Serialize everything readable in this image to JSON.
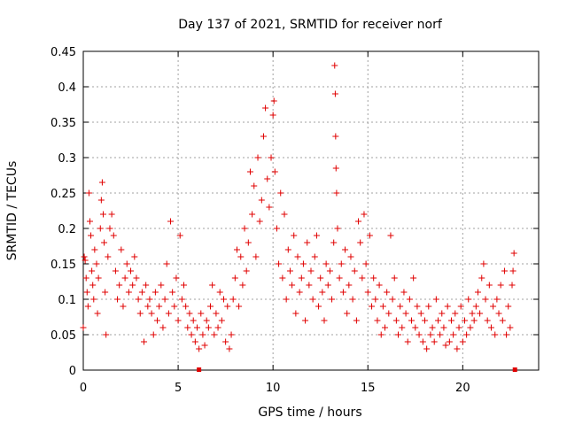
{
  "chart_data": {
    "type": "scatter",
    "title": "Day 137 of 2021, SRMTID for receiver norf",
    "xlabel": "GPS time / hours",
    "ylabel": "SRMTID / TECUs",
    "xlim": [
      0,
      24
    ],
    "ylim": [
      0,
      0.45
    ],
    "x_ticks": [
      0,
      5,
      10,
      15,
      20
    ],
    "x_tick_labels": [
      "0",
      "5",
      "10",
      "15",
      "20"
    ],
    "y_ticks": [
      0,
      0.05,
      0.1,
      0.15,
      0.2,
      0.25,
      0.3,
      0.35,
      0.4,
      0.45
    ],
    "y_tick_labels": [
      "0",
      "0.05",
      "0.1",
      "0.15",
      "0.2",
      "0.25",
      "0.3",
      "0.35",
      "0.4",
      "0.45"
    ],
    "grid": true,
    "marker": "plus",
    "color": "#e00000",
    "series": [
      {
        "name": "SRMTID",
        "points": [
          [
            0.0,
            0.06
          ],
          [
            0.05,
            0.16
          ],
          [
            0.1,
            0.155
          ],
          [
            0.15,
            0.13
          ],
          [
            0.2,
            0.11
          ],
          [
            0.25,
            0.09
          ],
          [
            0.3,
            0.25
          ],
          [
            0.35,
            0.21
          ],
          [
            0.4,
            0.19
          ],
          [
            0.45,
            0.14
          ],
          [
            0.5,
            0.12
          ],
          [
            0.55,
            0.1
          ],
          [
            0.6,
            0.17
          ],
          [
            0.7,
            0.15
          ],
          [
            0.75,
            0.08
          ],
          [
            0.8,
            0.13
          ],
          [
            0.9,
            0.2
          ],
          [
            0.95,
            0.24
          ],
          [
            1.0,
            0.265
          ],
          [
            1.05,
            0.22
          ],
          [
            1.1,
            0.18
          ],
          [
            1.15,
            0.11
          ],
          [
            1.2,
            0.05
          ],
          [
            1.3,
            0.16
          ],
          [
            1.4,
            0.2
          ],
          [
            1.5,
            0.22
          ],
          [
            1.6,
            0.19
          ],
          [
            1.7,
            0.14
          ],
          [
            1.8,
            0.1
          ],
          [
            1.9,
            0.12
          ],
          [
            2.0,
            0.17
          ],
          [
            2.1,
            0.09
          ],
          [
            2.2,
            0.13
          ],
          [
            2.3,
            0.15
          ],
          [
            2.4,
            0.11
          ],
          [
            2.5,
            0.14
          ],
          [
            2.6,
            0.12
          ],
          [
            2.7,
            0.16
          ],
          [
            2.8,
            0.13
          ],
          [
            2.9,
            0.1
          ],
          [
            3.0,
            0.08
          ],
          [
            3.1,
            0.11
          ],
          [
            3.2,
            0.04
          ],
          [
            3.3,
            0.12
          ],
          [
            3.4,
            0.09
          ],
          [
            3.5,
            0.1
          ],
          [
            3.6,
            0.08
          ],
          [
            3.7,
            0.05
          ],
          [
            3.8,
            0.11
          ],
          [
            3.9,
            0.07
          ],
          [
            4.0,
            0.09
          ],
          [
            4.1,
            0.12
          ],
          [
            4.2,
            0.06
          ],
          [
            4.3,
            0.1
          ],
          [
            4.4,
            0.15
          ],
          [
            4.5,
            0.08
          ],
          [
            4.6,
            0.21
          ],
          [
            4.7,
            0.11
          ],
          [
            4.8,
            0.09
          ],
          [
            4.9,
            0.13
          ],
          [
            5.0,
            0.07
          ],
          [
            5.1,
            0.19
          ],
          [
            5.2,
            0.1
          ],
          [
            5.3,
            0.12
          ],
          [
            5.4,
            0.09
          ],
          [
            5.5,
            0.06
          ],
          [
            5.6,
            0.08
          ],
          [
            5.7,
            0.05
          ],
          [
            5.8,
            0.07
          ],
          [
            5.9,
            0.04
          ],
          [
            6.0,
            0.06
          ],
          [
            6.1,
            0.03
          ],
          [
            6.2,
            0.08
          ],
          [
            6.3,
            0.05
          ],
          [
            6.4,
            0.035
          ],
          [
            6.5,
            0.07
          ],
          [
            6.6,
            0.06
          ],
          [
            6.7,
            0.09
          ],
          [
            6.8,
            0.12
          ],
          [
            6.9,
            0.05
          ],
          [
            7.0,
            0.08
          ],
          [
            7.1,
            0.06
          ],
          [
            7.2,
            0.11
          ],
          [
            7.3,
            0.07
          ],
          [
            7.4,
            0.1
          ],
          [
            7.5,
            0.04
          ],
          [
            7.6,
            0.09
          ],
          [
            7.7,
            0.03
          ],
          [
            7.8,
            0.05
          ],
          [
            7.9,
            0.1
          ],
          [
            8.0,
            0.13
          ],
          [
            8.1,
            0.17
          ],
          [
            8.2,
            0.09
          ],
          [
            8.3,
            0.16
          ],
          [
            8.4,
            0.12
          ],
          [
            8.5,
            0.2
          ],
          [
            8.6,
            0.14
          ],
          [
            8.7,
            0.18
          ],
          [
            8.8,
            0.28
          ],
          [
            8.9,
            0.22
          ],
          [
            9.0,
            0.26
          ],
          [
            9.1,
            0.16
          ],
          [
            9.2,
            0.3
          ],
          [
            9.3,
            0.21
          ],
          [
            9.4,
            0.24
          ],
          [
            9.5,
            0.33
          ],
          [
            9.6,
            0.37
          ],
          [
            9.7,
            0.27
          ],
          [
            9.8,
            0.23
          ],
          [
            9.9,
            0.3
          ],
          [
            10.0,
            0.36
          ],
          [
            10.05,
            0.38
          ],
          [
            10.1,
            0.28
          ],
          [
            10.2,
            0.2
          ],
          [
            10.3,
            0.15
          ],
          [
            10.4,
            0.25
          ],
          [
            10.5,
            0.13
          ],
          [
            10.6,
            0.22
          ],
          [
            10.7,
            0.1
          ],
          [
            10.8,
            0.17
          ],
          [
            10.9,
            0.14
          ],
          [
            11.0,
            0.12
          ],
          [
            11.1,
            0.19
          ],
          [
            11.2,
            0.08
          ],
          [
            11.3,
            0.16
          ],
          [
            11.4,
            0.11
          ],
          [
            11.5,
            0.13
          ],
          [
            11.6,
            0.15
          ],
          [
            11.7,
            0.07
          ],
          [
            11.8,
            0.18
          ],
          [
            11.9,
            0.12
          ],
          [
            12.0,
            0.14
          ],
          [
            12.1,
            0.1
          ],
          [
            12.2,
            0.16
          ],
          [
            12.3,
            0.19
          ],
          [
            12.4,
            0.09
          ],
          [
            12.5,
            0.13
          ],
          [
            12.6,
            0.11
          ],
          [
            12.7,
            0.07
          ],
          [
            12.8,
            0.15
          ],
          [
            12.9,
            0.12
          ],
          [
            13.0,
            0.14
          ],
          [
            13.1,
            0.1
          ],
          [
            13.2,
            0.18
          ],
          [
            13.25,
            0.43
          ],
          [
            13.28,
            0.39
          ],
          [
            13.3,
            0.33
          ],
          [
            13.32,
            0.285
          ],
          [
            13.35,
            0.25
          ],
          [
            13.4,
            0.2
          ],
          [
            13.5,
            0.13
          ],
          [
            13.6,
            0.15
          ],
          [
            13.7,
            0.11
          ],
          [
            13.8,
            0.17
          ],
          [
            13.9,
            0.08
          ],
          [
            14.0,
            0.12
          ],
          [
            14.1,
            0.16
          ],
          [
            14.2,
            0.1
          ],
          [
            14.3,
            0.14
          ],
          [
            14.4,
            0.07
          ],
          [
            14.5,
            0.21
          ],
          [
            14.6,
            0.18
          ],
          [
            14.7,
            0.13
          ],
          [
            14.8,
            0.22
          ],
          [
            14.9,
            0.15
          ],
          [
            15.0,
            0.11
          ],
          [
            15.1,
            0.19
          ],
          [
            15.2,
            0.09
          ],
          [
            15.3,
            0.13
          ],
          [
            15.4,
            0.1
          ],
          [
            15.5,
            0.07
          ],
          [
            15.6,
            0.12
          ],
          [
            15.7,
            0.05
          ],
          [
            15.8,
            0.09
          ],
          [
            15.9,
            0.06
          ],
          [
            16.0,
            0.11
          ],
          [
            16.1,
            0.08
          ],
          [
            16.2,
            0.19
          ],
          [
            16.3,
            0.1
          ],
          [
            16.4,
            0.13
          ],
          [
            16.5,
            0.07
          ],
          [
            16.6,
            0.05
          ],
          [
            16.7,
            0.09
          ],
          [
            16.8,
            0.06
          ],
          [
            16.9,
            0.11
          ],
          [
            17.0,
            0.08
          ],
          [
            17.1,
            0.04
          ],
          [
            17.2,
            0.1
          ],
          [
            17.3,
            0.07
          ],
          [
            17.4,
            0.13
          ],
          [
            17.5,
            0.06
          ],
          [
            17.6,
            0.09
          ],
          [
            17.7,
            0.05
          ],
          [
            17.8,
            0.08
          ],
          [
            17.9,
            0.04
          ],
          [
            18.0,
            0.07
          ],
          [
            18.1,
            0.03
          ],
          [
            18.2,
            0.09
          ],
          [
            18.3,
            0.05
          ],
          [
            18.4,
            0.06
          ],
          [
            18.5,
            0.04
          ],
          [
            18.6,
            0.1
          ],
          [
            18.7,
            0.07
          ],
          [
            18.8,
            0.05
          ],
          [
            18.9,
            0.08
          ],
          [
            19.0,
            0.06
          ],
          [
            19.1,
            0.035
          ],
          [
            19.2,
            0.09
          ],
          [
            19.3,
            0.04
          ],
          [
            19.4,
            0.07
          ],
          [
            19.5,
            0.05
          ],
          [
            19.6,
            0.08
          ],
          [
            19.7,
            0.03
          ],
          [
            19.8,
            0.06
          ],
          [
            19.9,
            0.09
          ],
          [
            20.0,
            0.04
          ],
          [
            20.1,
            0.07
          ],
          [
            20.2,
            0.05
          ],
          [
            20.3,
            0.1
          ],
          [
            20.4,
            0.06
          ],
          [
            20.5,
            0.08
          ],
          [
            20.6,
            0.07
          ],
          [
            20.7,
            0.09
          ],
          [
            20.8,
            0.11
          ],
          [
            20.9,
            0.08
          ],
          [
            21.0,
            0.13
          ],
          [
            21.1,
            0.15
          ],
          [
            21.2,
            0.1
          ],
          [
            21.3,
            0.07
          ],
          [
            21.4,
            0.12
          ],
          [
            21.5,
            0.06
          ],
          [
            21.6,
            0.09
          ],
          [
            21.7,
            0.05
          ],
          [
            21.8,
            0.1
          ],
          [
            21.9,
            0.08
          ],
          [
            22.0,
            0.12
          ],
          [
            22.1,
            0.07
          ],
          [
            22.2,
            0.14
          ],
          [
            22.3,
            0.05
          ],
          [
            22.4,
            0.09
          ],
          [
            22.5,
            0.06
          ],
          [
            22.6,
            0.12
          ],
          [
            22.65,
            0.14
          ],
          [
            22.7,
            0.165
          ]
        ]
      }
    ],
    "gap_markers": [
      6.1,
      22.75
    ]
  }
}
